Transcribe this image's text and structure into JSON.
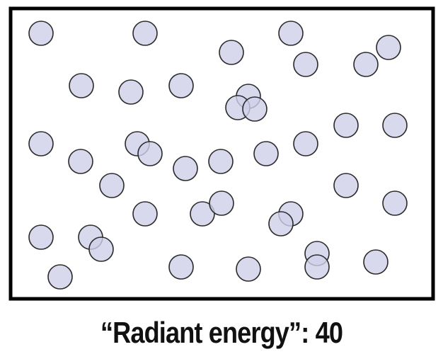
{
  "caption": {
    "label": "“Radiant energy”",
    "separator": ": ",
    "value": "40"
  },
  "style": {
    "particle_fill": "#d0d0e8",
    "particle_stroke": "#2a2a2a",
    "frame_stroke": "#000000"
  }
}
